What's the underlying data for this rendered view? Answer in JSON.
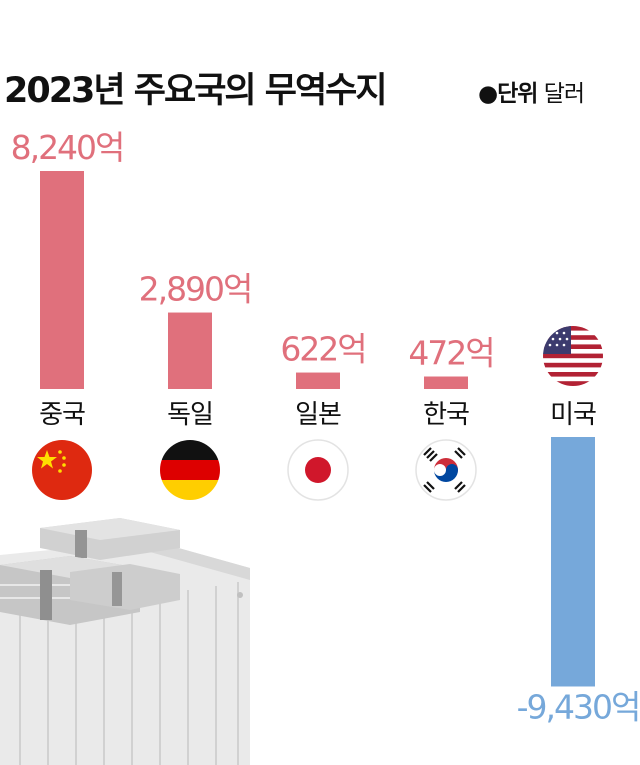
{
  "title": "2023년 주요국의 무역수지",
  "unit": {
    "marker": "●",
    "label": "단위",
    "value": "달러"
  },
  "colors": {
    "positive": "#e0707c",
    "negative": "#76a8da",
    "text": "#111111"
  },
  "chart_data": {
    "type": "bar",
    "title": "2023년 주요국의 무역수지",
    "unit": "달러",
    "categories": [
      "중국",
      "독일",
      "일본",
      "한국",
      "미국"
    ],
    "values": [
      8240,
      2890,
      622,
      472,
      -9430
    ],
    "value_labels": [
      "8,240억",
      "2,890억",
      "622억",
      "472억",
      "-9,430억"
    ],
    "value_scale": "억",
    "flags": [
      "china-flag-icon",
      "germany-flag-icon",
      "japan-flag-icon",
      "south-korea-flag-icon",
      "usa-flag-icon"
    ],
    "legend": "none",
    "grid": false
  },
  "illustration": "cash-bundles-on-shipping-container"
}
